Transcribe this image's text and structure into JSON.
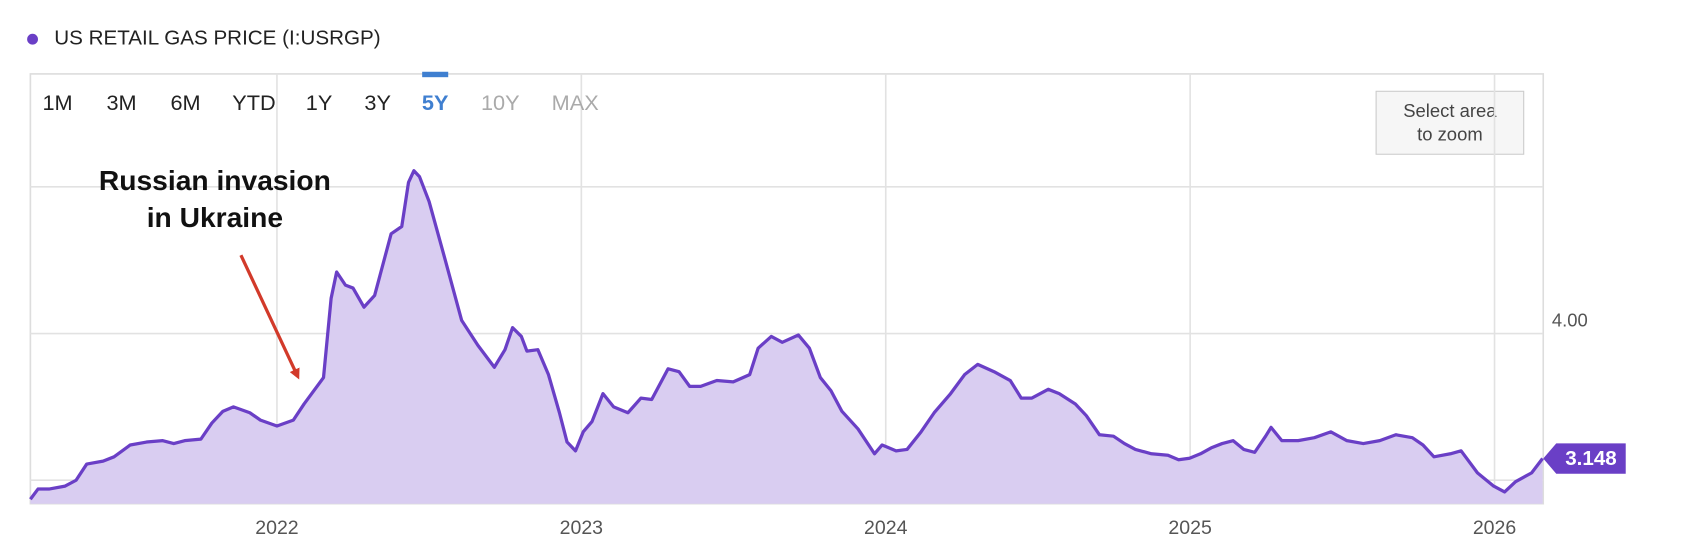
{
  "chart_data": {
    "type": "area",
    "series": [
      {
        "name": "US RETAIL GAS PRICE (I:USRGP)",
        "color": "#6a3fc6",
        "fill": "#d9cdf1",
        "x": [
          2021.19,
          2021.215,
          2021.251,
          2021.304,
          2021.34,
          2021.375,
          2021.429,
          2021.465,
          2021.518,
          2021.572,
          2021.625,
          2021.661,
          2021.697,
          2021.75,
          2021.786,
          2021.822,
          2021.857,
          2021.911,
          2021.946,
          2022.0,
          2022.054,
          2022.089,
          2022.153,
          2022.178,
          2022.196,
          2022.225,
          2022.25,
          2022.286,
          2022.321,
          2022.375,
          2022.41,
          2022.432,
          2022.45,
          2022.468,
          2022.5,
          2022.553,
          2022.607,
          2022.66,
          2022.714,
          2022.749,
          2022.774,
          2022.803,
          2022.821,
          2022.857,
          2022.892,
          2022.928,
          2022.953,
          2022.981,
          2023.006,
          2023.035,
          2023.071,
          2023.106,
          2023.153,
          2023.196,
          2023.231,
          2023.285,
          2023.321,
          2023.356,
          2023.392,
          2023.445,
          2023.499,
          2023.553,
          2023.581,
          2023.624,
          2023.66,
          2023.713,
          2023.749,
          2023.785,
          2023.82,
          2023.856,
          2023.909,
          2023.963,
          2023.988,
          2024.034,
          2024.07,
          2024.116,
          2024.159,
          2024.213,
          2024.259,
          2024.302,
          2024.356,
          2024.409,
          2024.445,
          2024.48,
          2024.534,
          2024.57,
          2024.623,
          2024.659,
          2024.702,
          2024.748,
          2024.784,
          2024.82,
          2024.873,
          2024.927,
          2024.962,
          2024.998,
          2025.034,
          2025.069,
          2025.105,
          2025.141,
          2025.176,
          2025.212,
          2025.248,
          2025.266,
          2025.301,
          2025.355,
          2025.408,
          2025.462,
          2025.515,
          2025.569,
          2025.623,
          2025.676,
          2025.73,
          2025.765,
          2025.801,
          2025.855,
          2025.89,
          2025.944,
          2025.997,
          2026.033,
          2026.069,
          2026.122,
          2026.158
        ],
        "values": [
          2.87,
          2.94,
          2.94,
          2.96,
          3.0,
          3.11,
          3.13,
          3.16,
          3.24,
          3.26,
          3.27,
          3.25,
          3.27,
          3.28,
          3.39,
          3.47,
          3.5,
          3.46,
          3.41,
          3.37,
          3.41,
          3.52,
          3.7,
          4.24,
          4.42,
          4.33,
          4.31,
          4.18,
          4.26,
          4.68,
          4.73,
          5.03,
          5.11,
          5.07,
          4.9,
          4.5,
          4.09,
          3.92,
          3.77,
          3.89,
          4.04,
          3.98,
          3.88,
          3.89,
          3.72,
          3.46,
          3.26,
          3.2,
          3.33,
          3.4,
          3.59,
          3.5,
          3.46,
          3.56,
          3.55,
          3.76,
          3.74,
          3.64,
          3.64,
          3.68,
          3.67,
          3.72,
          3.9,
          3.98,
          3.94,
          3.99,
          3.9,
          3.7,
          3.61,
          3.47,
          3.35,
          3.18,
          3.24,
          3.2,
          3.21,
          3.33,
          3.46,
          3.59,
          3.72,
          3.79,
          3.74,
          3.68,
          3.56,
          3.56,
          3.62,
          3.59,
          3.52,
          3.44,
          3.31,
          3.3,
          3.25,
          3.21,
          3.18,
          3.17,
          3.14,
          3.15,
          3.18,
          3.22,
          3.25,
          3.27,
          3.21,
          3.19,
          3.3,
          3.36,
          3.27,
          3.27,
          3.29,
          3.33,
          3.27,
          3.25,
          3.27,
          3.31,
          3.29,
          3.24,
          3.16,
          3.18,
          3.2,
          3.05,
          2.96,
          2.92,
          2.99,
          3.05,
          3.148
        ]
      }
    ],
    "xlim": [
      2021.19,
      2026.16
    ],
    "ylim": [
      2.84,
      5.77
    ],
    "xticks": [
      2022,
      2023,
      2024,
      2025,
      2026
    ],
    "yticks": [
      {
        "value": 3,
        "label": null
      },
      {
        "value": 4,
        "label": "4.00"
      },
      {
        "value": 5,
        "label": null
      }
    ],
    "grid": true,
    "annotation": {
      "lines": [
        "Russian invasion",
        "in Ukraine"
      ],
      "color": "#d23a2a"
    },
    "range_buttons": [
      "1M",
      "3M",
      "6M",
      "YTD",
      "1Y",
      "3Y",
      "5Y",
      "10Y",
      "MAX"
    ],
    "active_range_index": 6,
    "disabled_range_indices": [
      7,
      8
    ],
    "zoom_hint": [
      "Select area",
      "to zoom"
    ]
  }
}
